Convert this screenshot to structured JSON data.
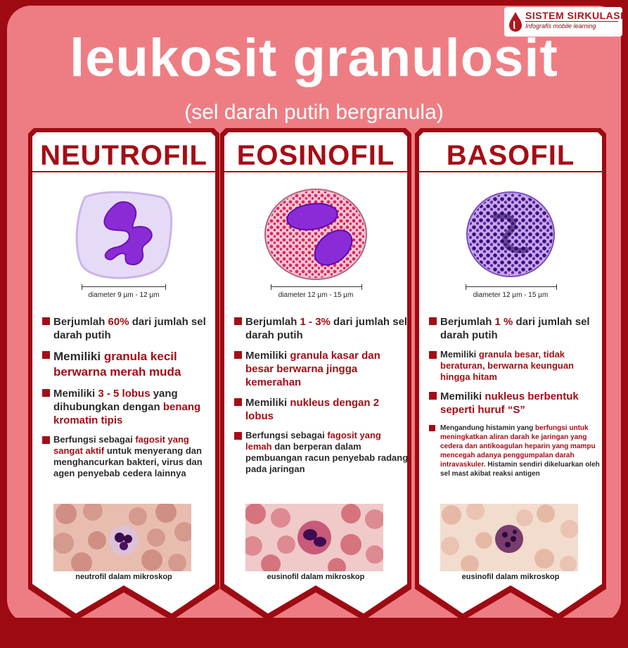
{
  "header": {
    "title": "leukosit granulosit",
    "subtitle": "(sel darah putih bergranula)"
  },
  "logo": {
    "brand": "SISTEM SIRKULASI",
    "tagline": "Infografis mobile learning"
  },
  "colors": {
    "background": "#ee7d83",
    "dark_red": "#9e0a12",
    "accent": "#a50d15",
    "card": "#ffffff"
  },
  "cards": [
    {
      "name": "NEUTROFIL",
      "scale": "diameter 9 µm - 12 µm",
      "facts": [
        {
          "pre": "Berjumlah ",
          "hl": "60%",
          "post": " dari jumlah sel darah putih"
        },
        {
          "pre": "Memiliki ",
          "hl": "granula kecil berwarna merah muda",
          "post": ""
        },
        {
          "pre": "Memiliki ",
          "hl": "3 - 5 lobus",
          "post": " yang dihubungkan dengan ",
          "hl2": "benang kromatin tipis"
        },
        {
          "pre": "Berfungsi sebagai ",
          "hl": "fagosit yang sangat aktif",
          "post": " untuk menyerang dan menghancurkan bakteri, virus dan agen penyebab cedera lainnya"
        }
      ],
      "caption": "neutrofil dalam mikroskop"
    },
    {
      "name": "EOSINOFIL",
      "scale": "diameter 12 µm - 15 µm",
      "facts": [
        {
          "pre": "Berjumlah ",
          "hl": "1 - 3%",
          "post": " dari jumlah sel darah putih"
        },
        {
          "pre": "Memiliki ",
          "hl": "granula kasar dan besar berwarna jingga kemerahan",
          "post": ""
        },
        {
          "pre": "Memiliki ",
          "hl": "nukleus dengan 2 lobus",
          "post": ""
        },
        {
          "pre": "Berfungsi sebagai ",
          "hl": "fagosit yang lemah",
          "post": " dan berperan dalam pembuangan racun penyebab radang pada jaringan"
        }
      ],
      "caption": "eusinofil dalam mikroskop"
    },
    {
      "name": "BASOFIL",
      "scale": "diameter 12 µm - 15 µm",
      "facts": [
        {
          "pre": "Berjumlah ",
          "hl": "1 %",
          "post": " dari jumlah sel darah putih"
        },
        {
          "pre": "Memiliki ",
          "hl": "granula besar, tidak beraturan, berwarna keunguan hingga hitam",
          "post": ""
        },
        {
          "pre": "Memiliki ",
          "hl": "nukleus berbentuk seperti huruf “S”",
          "post": ""
        },
        {
          "pre": "Mengandung histamin yang ",
          "hl": "berfungsi untuk meningkatkan aliran darah ke jaringan yang cedera dan antikoagulan heparin yang mampu mencegah adanya penggumpalan darah intravaskuler.",
          "post": " Histamin sendiri dikeluarkan oleh sel mast akibat reaksi antigen"
        }
      ],
      "caption": "eusinofil dalam mikroskop"
    }
  ]
}
